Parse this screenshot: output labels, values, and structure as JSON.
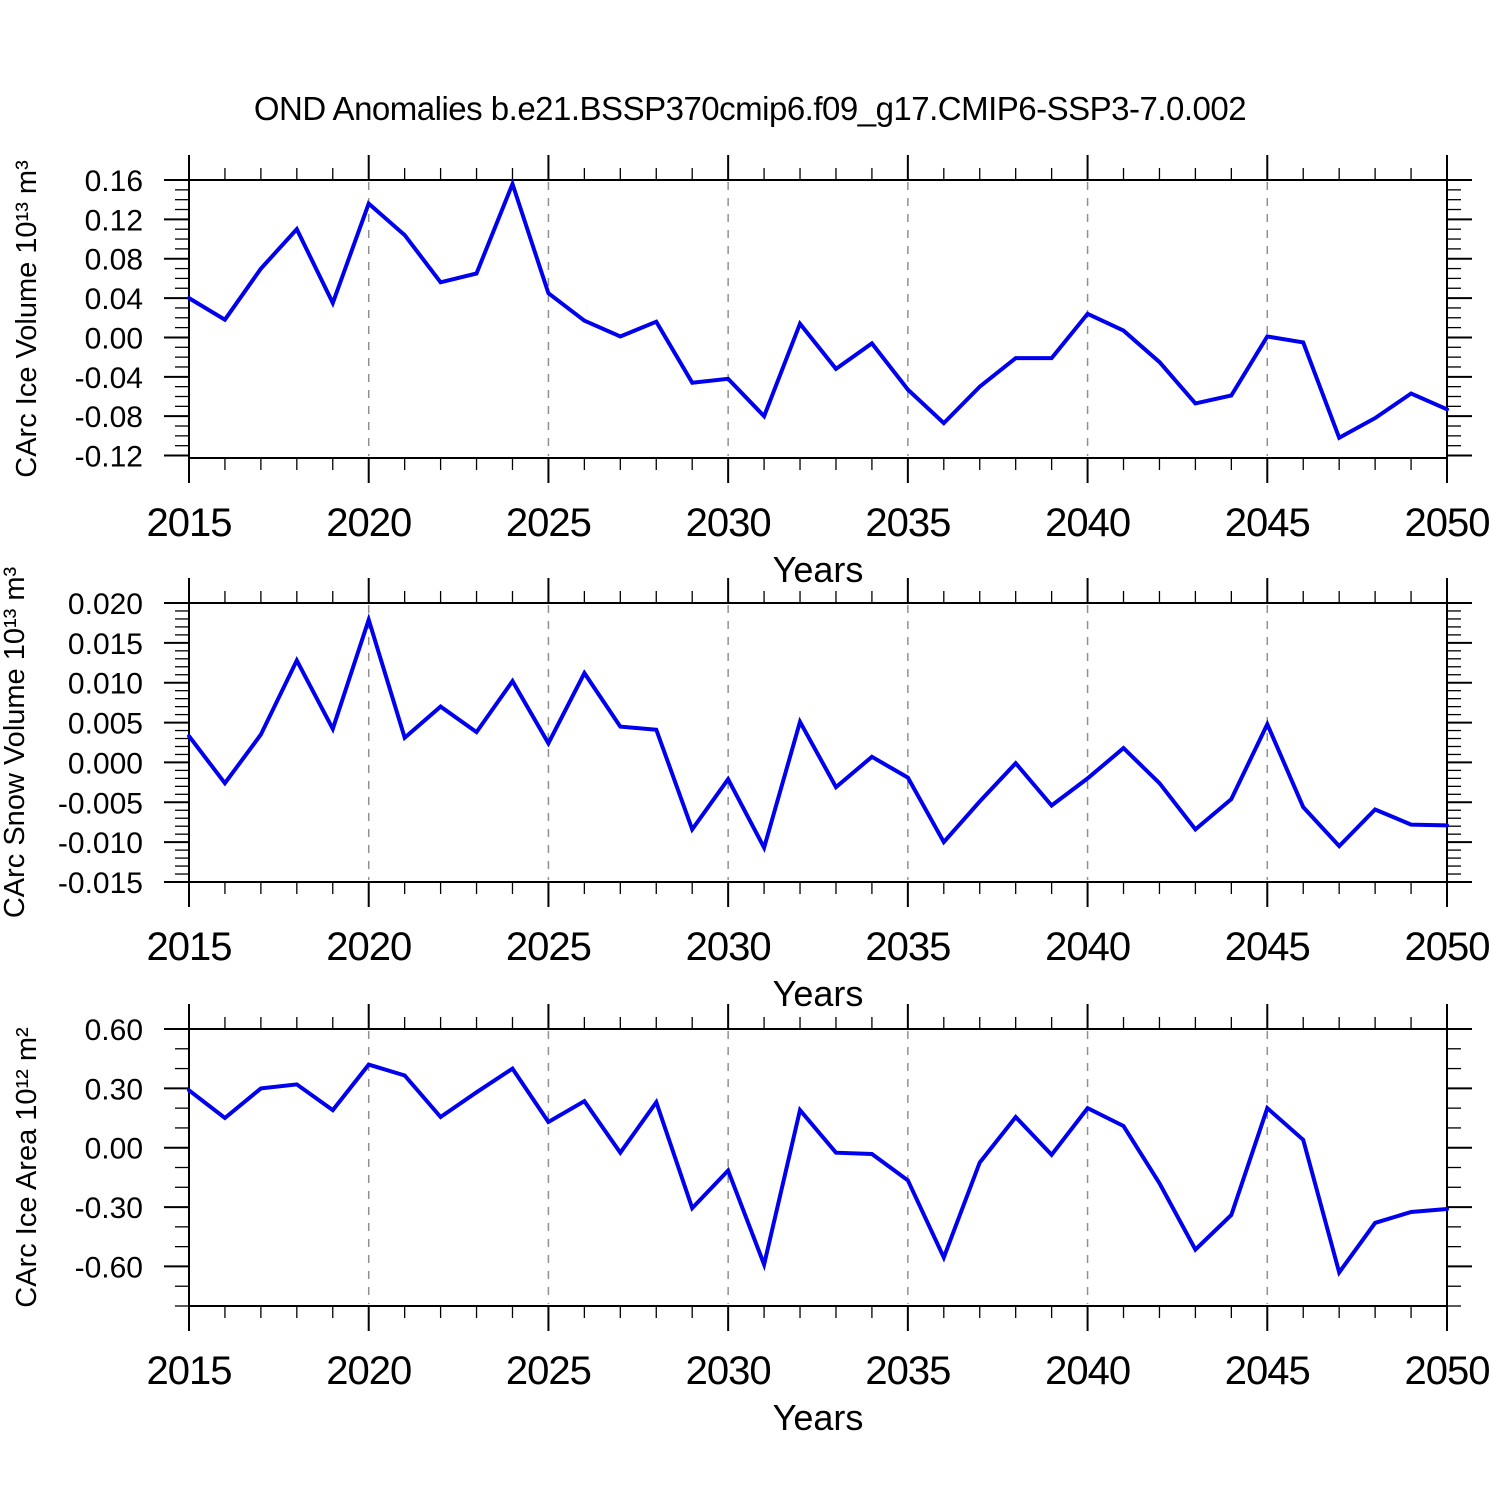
{
  "title": "OND Anomalies b.e21.BSSP370cmip6.f09_g17.CMIP6-SSP3-7.0.002",
  "colors": {
    "line": "#0000EE",
    "axis": "#000000",
    "grid": "#909090",
    "background": "#ffffff"
  },
  "xaxis": {
    "label": "Years",
    "range": [
      2015,
      2050
    ],
    "major_ticks": [
      2015,
      2020,
      2025,
      2030,
      2035,
      2040,
      2045,
      2050
    ],
    "minor_step": 1,
    "grid_years": [
      2020,
      2025,
      2030,
      2035,
      2040,
      2045
    ]
  },
  "years": [
    2015,
    2016,
    2017,
    2018,
    2019,
    2020,
    2021,
    2022,
    2023,
    2024,
    2025,
    2026,
    2027,
    2028,
    2029,
    2030,
    2031,
    2032,
    2033,
    2034,
    2035,
    2036,
    2037,
    2038,
    2039,
    2040,
    2041,
    2042,
    2043,
    2044,
    2045,
    2046,
    2047,
    2048,
    2049,
    2050
  ],
  "chart_data": [
    {
      "type": "line",
      "ylabel": "CArc Ice Volume 10¹³ m³",
      "ylim": [
        -0.1225,
        0.16
      ],
      "ytick_start": 0.16,
      "ytick_step": 0.04,
      "ytick_count": 8,
      "ytick_decimals": 2,
      "minor_step": 0.01,
      "values": [
        0.04,
        0.018,
        0.07,
        0.11,
        0.035,
        0.136,
        0.104,
        0.056,
        0.065,
        0.156,
        0.045,
        0.017,
        0.001,
        0.016,
        -0.046,
        -0.042,
        -0.08,
        0.014,
        -0.032,
        -0.006,
        -0.053,
        -0.087,
        -0.05,
        -0.021,
        -0.021,
        0.024,
        0.007,
        -0.025,
        -0.067,
        -0.059,
        0.001,
        -0.005,
        -0.102,
        -0.082,
        -0.057,
        -0.073
      ]
    },
    {
      "type": "line",
      "ylabel": "CArc Snow Volume 10¹³ m³",
      "ylim": [
        -0.015,
        0.02
      ],
      "ytick_start": 0.02,
      "ytick_step": 0.005,
      "ytick_count": 8,
      "ytick_decimals": 3,
      "minor_step": 0.001,
      "values": [
        0.0033,
        -0.0026,
        0.0035,
        0.0128,
        0.0042,
        0.0179,
        0.0031,
        0.007,
        0.0038,
        0.0102,
        0.0024,
        0.0112,
        0.0045,
        0.0041,
        -0.0084,
        -0.0021,
        -0.0107,
        0.0051,
        -0.0031,
        0.0007,
        -0.0019,
        -0.01,
        -0.0049,
        -0.0001,
        -0.0054,
        -0.002,
        0.0018,
        -0.0026,
        -0.0084,
        -0.0046,
        0.0048,
        -0.0056,
        -0.0105,
        -0.0059,
        -0.0078,
        -0.0079
      ]
    },
    {
      "type": "line",
      "ylabel": "CArc Ice Area 10¹² m²",
      "ylim": [
        -0.8,
        0.6
      ],
      "ytick_start": 0.6,
      "ytick_step": 0.3,
      "ytick_count": 5,
      "ytick_decimals": 2,
      "minor_step": 0.1,
      "values": [
        0.29,
        0.15,
        0.3,
        0.32,
        0.19,
        0.42,
        0.365,
        0.155,
        0.28,
        0.4,
        0.13,
        0.235,
        -0.025,
        0.23,
        -0.305,
        -0.115,
        -0.59,
        0.19,
        -0.025,
        -0.032,
        -0.165,
        -0.555,
        -0.075,
        0.155,
        -0.036,
        0.2,
        0.11,
        -0.18,
        -0.515,
        -0.34,
        0.2,
        0.04,
        -0.63,
        -0.38,
        -0.325,
        -0.31
      ]
    }
  ]
}
